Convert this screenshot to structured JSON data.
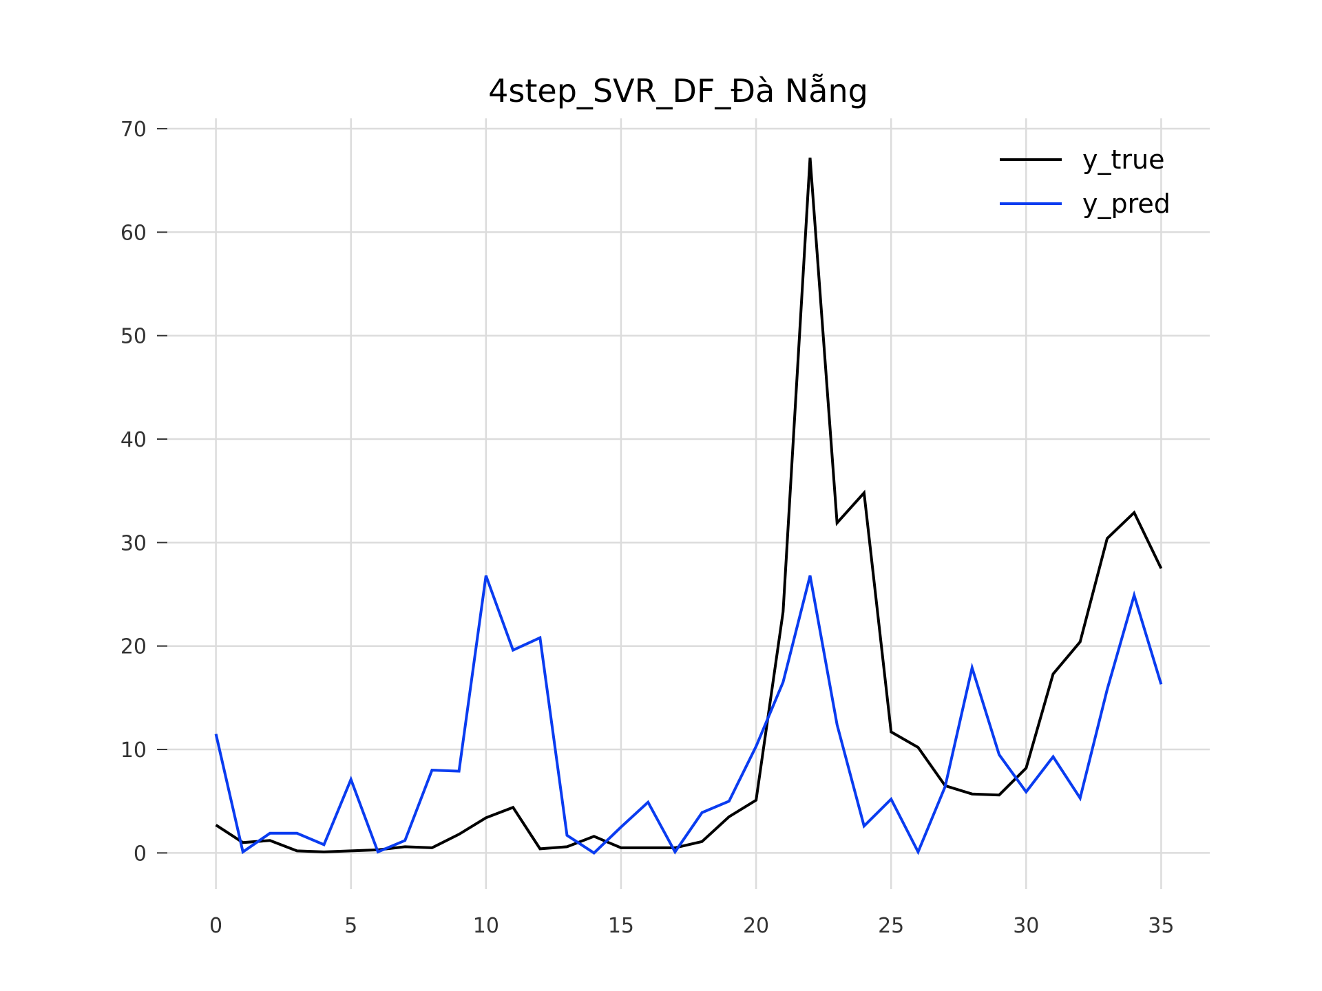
{
  "chart_data": {
    "type": "line",
    "title": "4step_SVR_DF_Đà Nẵng",
    "xlabel": "",
    "ylabel": "",
    "xlim": [
      -1.8,
      36.8
    ],
    "ylim": [
      -3.5,
      71
    ],
    "grid": true,
    "legend": "top-right",
    "x_ticks": [
      0,
      5,
      10,
      15,
      20,
      25,
      30,
      35
    ],
    "y_ticks": [
      0,
      10,
      20,
      30,
      40,
      50,
      60,
      70
    ],
    "x": [
      0,
      1,
      2,
      3,
      4,
      5,
      6,
      7,
      8,
      9,
      10,
      11,
      12,
      13,
      14,
      15,
      16,
      17,
      18,
      19,
      20,
      21,
      22,
      23,
      24,
      25,
      26,
      27,
      28,
      29,
      30,
      31,
      32,
      33,
      34,
      35
    ],
    "series": [
      {
        "name": "y_true",
        "color": "#000000",
        "values": [
          2.7,
          1.0,
          1.2,
          0.2,
          0.1,
          0.2,
          0.3,
          0.6,
          0.5,
          1.8,
          3.4,
          4.4,
          0.4,
          0.6,
          1.6,
          0.5,
          0.5,
          0.5,
          1.1,
          3.5,
          5.1,
          23.3,
          67.2,
          31.9,
          34.8,
          11.7,
          10.2,
          6.5,
          5.7,
          5.6,
          8.2,
          17.3,
          20.4,
          30.4,
          32.9,
          27.5
        ]
      },
      {
        "name": "y_pred",
        "color": "#0a3cf0",
        "values": [
          11.5,
          0.1,
          1.9,
          1.9,
          0.8,
          7.1,
          0.1,
          1.2,
          8.0,
          7.9,
          26.8,
          19.6,
          20.8,
          1.7,
          0.0,
          2.5,
          4.9,
          0.1,
          3.9,
          5.0,
          10.3,
          16.5,
          26.8,
          12.4,
          2.6,
          5.2,
          0.1,
          6.4,
          17.9,
          9.5,
          5.9,
          9.3,
          5.3,
          15.8,
          24.9,
          16.3
        ]
      }
    ]
  }
}
